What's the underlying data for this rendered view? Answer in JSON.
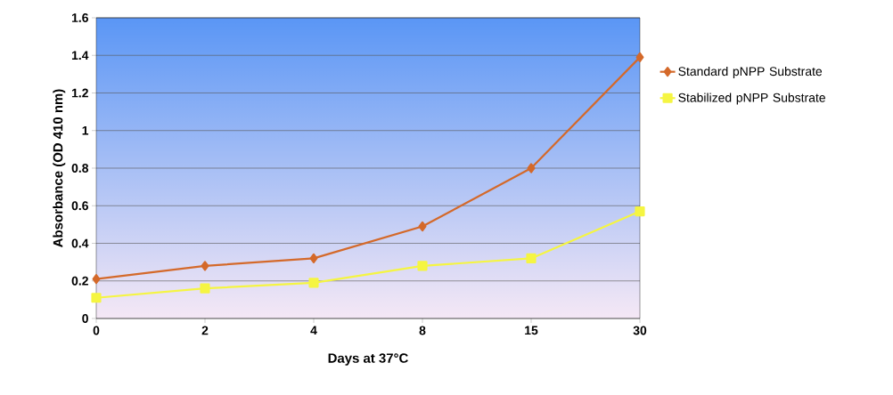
{
  "chart_data": {
    "type": "line",
    "xlabel": "Days at 37°C",
    "ylabel": "Absorbance (OD 410 nm)",
    "categories": [
      "0",
      "2",
      "4",
      "8",
      "15",
      "30"
    ],
    "series": [
      {
        "name": "Standard pNPP Substrate",
        "color": "#d4692a",
        "marker": "diamond",
        "values": [
          0.21,
          0.28,
          0.32,
          0.49,
          0.8,
          1.39
        ]
      },
      {
        "name": "Stabilized pNPP Substrate",
        "color": "#f5f542",
        "marker": "square",
        "values": [
          0.11,
          0.16,
          0.19,
          0.28,
          0.32,
          0.57
        ]
      }
    ],
    "ylim": [
      0,
      1.6
    ],
    "yticks": [
      0,
      0.2,
      0.4,
      0.6,
      0.8,
      1,
      1.2,
      1.4,
      1.6
    ],
    "grid": "y",
    "legend": "right"
  }
}
